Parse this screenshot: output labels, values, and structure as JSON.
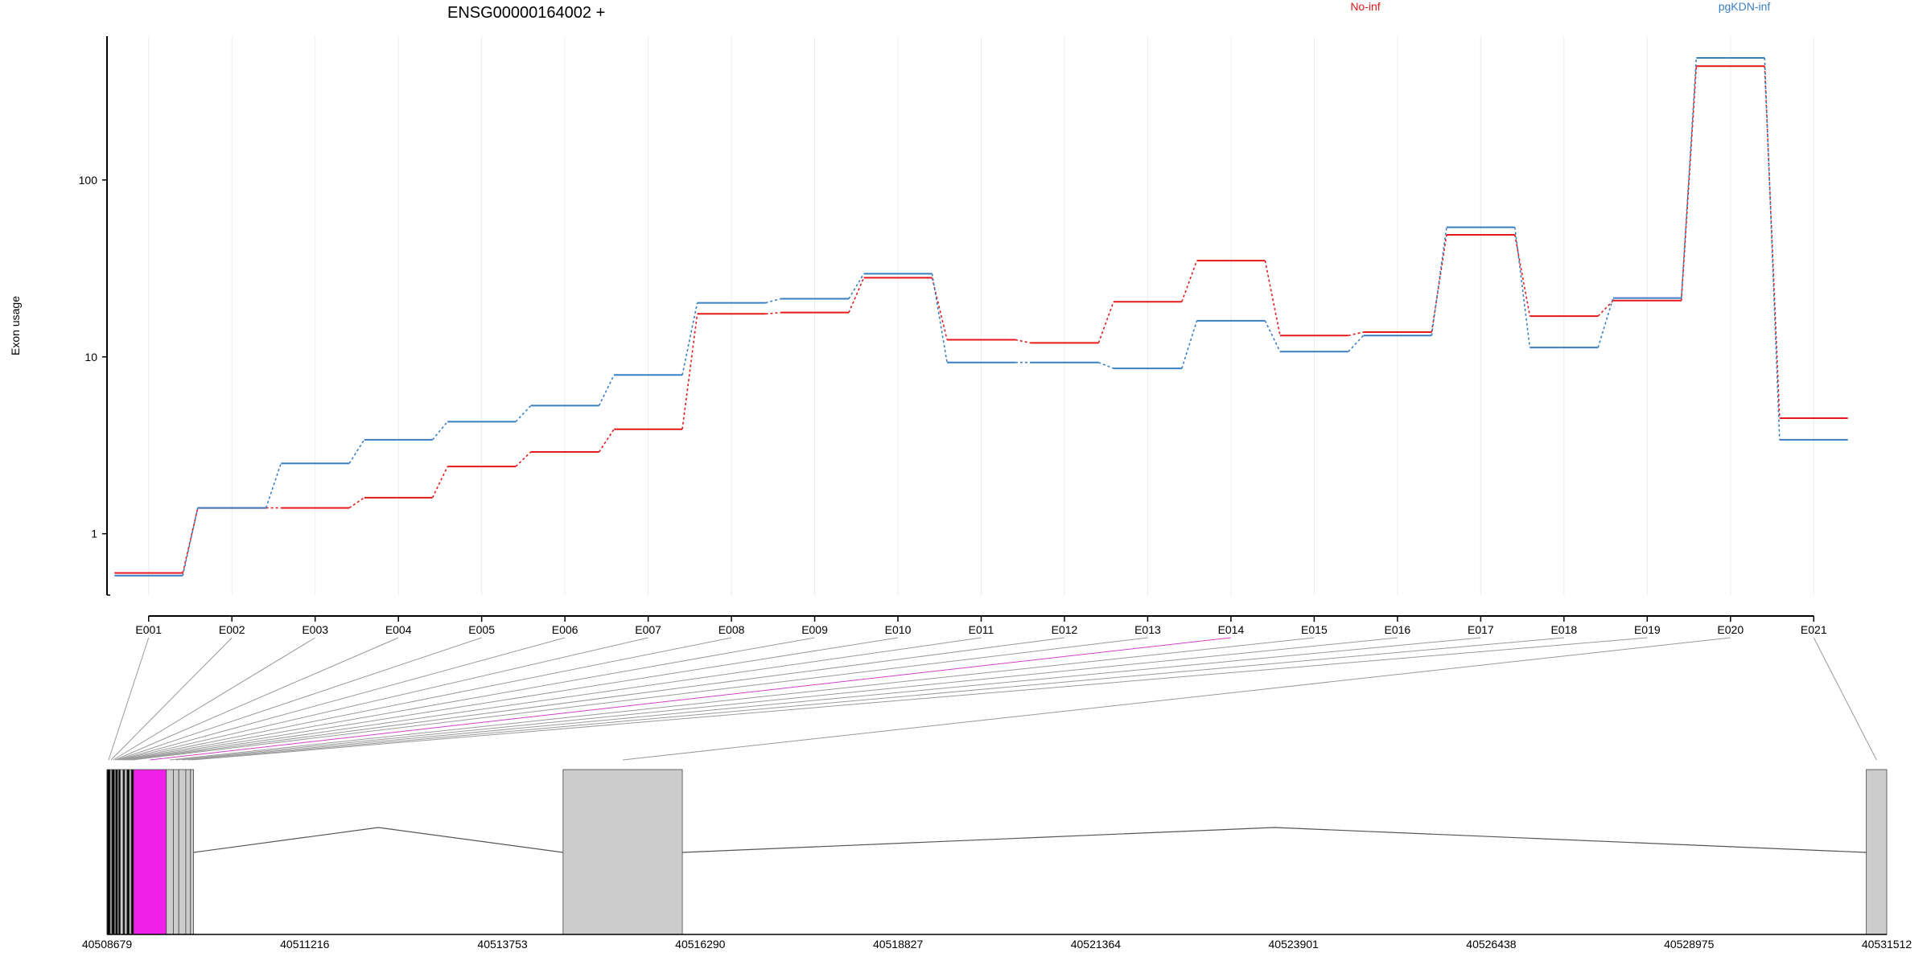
{
  "title": "ENSG00000164002 +",
  "chart_data": [
    {
      "type": "line",
      "ylabel": "Exon usage",
      "yscale": "log",
      "ylim": [
        0.45,
        650
      ],
      "y_ticks": [
        1,
        10,
        100
      ],
      "y_tick_labels": [
        "1",
        "10",
        "100"
      ],
      "categories": [
        "E001",
        "E002",
        "E003",
        "E004",
        "E005",
        "E006",
        "E007",
        "E008",
        "E009",
        "E010",
        "E011",
        "E012",
        "E013",
        "E014",
        "E015",
        "E016",
        "E017",
        "E018",
        "E019",
        "E020",
        "E021"
      ],
      "series": [
        {
          "name": "No-inf",
          "color": "#e41a1c",
          "values": [
            0.6,
            1.4,
            1.4,
            1.6,
            2.4,
            2.9,
            3.9,
            17.5,
            17.8,
            28.0,
            12.5,
            12.0,
            20.5,
            35.0,
            13.2,
            13.8,
            49.0,
            17.0,
            20.8,
            440.0,
            4.5
          ]
        },
        {
          "name": "pgKDN-inf",
          "color": "#3a7fc1",
          "values": [
            0.58,
            1.4,
            2.5,
            3.4,
            4.3,
            5.3,
            7.9,
            20.2,
            21.3,
            29.5,
            9.3,
            9.3,
            8.6,
            16.0,
            10.7,
            13.2,
            54.0,
            11.3,
            21.5,
            490.0,
            3.4
          ]
        }
      ],
      "legend_placement": "top"
    },
    {
      "type": "gene-model",
      "x_ticks": [
        "40508679",
        "40511216",
        "40513753",
        "40516290",
        "40518827",
        "40521364",
        "40523901",
        "40526438",
        "40528975",
        "40531512"
      ],
      "x_range": [
        40508679,
        40531512
      ],
      "exons": [
        {
          "id": "E001",
          "start": 40508679,
          "end": 40508720,
          "color": "#000000"
        },
        {
          "id": "E002",
          "start": 40508720,
          "end": 40508740,
          "color": "#cccccc"
        },
        {
          "id": "E003",
          "start": 40508740,
          "end": 40508775,
          "color": "#000000"
        },
        {
          "id": "E004",
          "start": 40508775,
          "end": 40508790,
          "color": "#cccccc"
        },
        {
          "id": "E005",
          "start": 40508790,
          "end": 40508815,
          "color": "#000000"
        },
        {
          "id": "E006",
          "start": 40508815,
          "end": 40508830,
          "color": "#cccccc"
        },
        {
          "id": "E007",
          "start": 40508830,
          "end": 40508850,
          "color": "#000000"
        },
        {
          "id": "E008",
          "start": 40508850,
          "end": 40508885,
          "color": "#cccccc"
        },
        {
          "id": "E009",
          "start": 40508885,
          "end": 40508905,
          "color": "#000000"
        },
        {
          "id": "E010",
          "start": 40508905,
          "end": 40508935,
          "color": "#cccccc"
        },
        {
          "id": "E011",
          "start": 40508935,
          "end": 40508965,
          "color": "#000000"
        },
        {
          "id": "E012",
          "start": 40508965,
          "end": 40508990,
          "color": "#cccccc"
        },
        {
          "id": "E013",
          "start": 40508990,
          "end": 40509020,
          "color": "#000000"
        },
        {
          "id": "E014",
          "start": 40509020,
          "end": 40509440,
          "color": "#f020e8"
        },
        {
          "id": "E015",
          "start": 40509440,
          "end": 40509530,
          "color": "#cccccc"
        },
        {
          "id": "E016",
          "start": 40509530,
          "end": 40509600,
          "color": "#cccccc"
        },
        {
          "id": "E017",
          "start": 40509600,
          "end": 40509690,
          "color": "#cccccc"
        },
        {
          "id": "E018",
          "start": 40509690,
          "end": 40509750,
          "color": "#cccccc"
        },
        {
          "id": "E019",
          "start": 40509750,
          "end": 40509790,
          "color": "#cccccc"
        },
        {
          "id": "E020",
          "start": 40514530,
          "end": 40516060,
          "color": "#cccccc"
        },
        {
          "id": "E021",
          "start": 40531250,
          "end": 40531512,
          "color": "#cccccc"
        }
      ],
      "highlight": "E014"
    }
  ]
}
